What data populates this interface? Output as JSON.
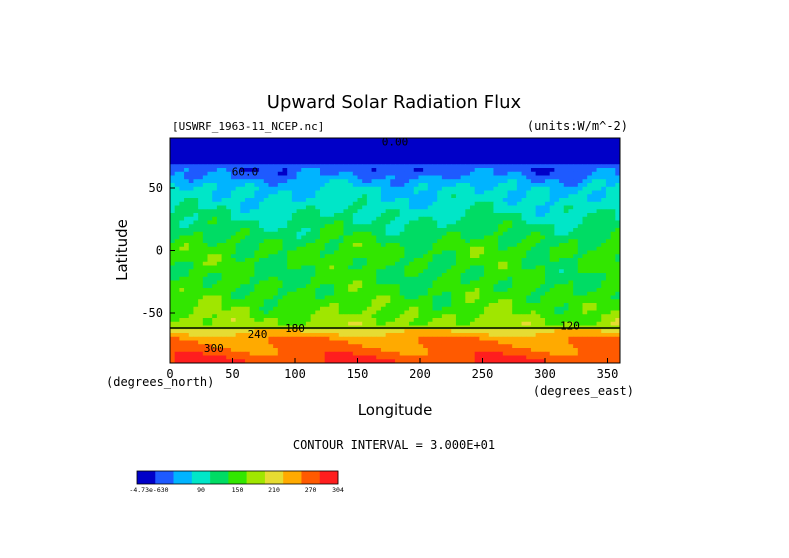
{
  "chart_data": {
    "type": "heatmap",
    "title": "Upward Solar Radiation Flux",
    "source_label": "[USWRF_1963-11_NCEP.nc]",
    "units_label": "(units:W/m^-2)",
    "xlabel": "Longitude",
    "ylabel": "Latitude",
    "x_unit_label": "(degrees_east)",
    "y_unit_label": "(degrees_north)",
    "xlim": [
      0,
      360
    ],
    "ylim": [
      -90,
      90
    ],
    "x_ticks": [
      0,
      50,
      100,
      150,
      200,
      250,
      300,
      350
    ],
    "y_ticks": [
      50,
      0,
      -50
    ],
    "contour_interval_text": "CONTOUR INTERVAL = 3.000E+01",
    "colorbar": {
      "labels": [
        "-4.73e-630",
        "90",
        "150",
        "210",
        "270",
        "304"
      ],
      "colors": [
        "#0000c8",
        "#1e5aff",
        "#00b4ff",
        "#00e6c8",
        "#00dc64",
        "#32e600",
        "#a0e600",
        "#e6dc32",
        "#ffaa00",
        "#ff5a00",
        "#ff1e1e"
      ]
    },
    "contour_labels": [
      "0.00",
      "60.0",
      "120",
      "180",
      "240",
      "300"
    ],
    "zonal_profile": {
      "lat": [
        90,
        80,
        70,
        60,
        50,
        40,
        30,
        20,
        10,
        0,
        -10,
        -20,
        -30,
        -40,
        -50,
        -55,
        -60,
        -63,
        -70,
        -80,
        -90
      ],
      "value": [
        0,
        10,
        30,
        55,
        90,
        100,
        115,
        130,
        145,
        160,
        155,
        150,
        155,
        165,
        175,
        185,
        190,
        220,
        265,
        280,
        300
      ]
    }
  }
}
